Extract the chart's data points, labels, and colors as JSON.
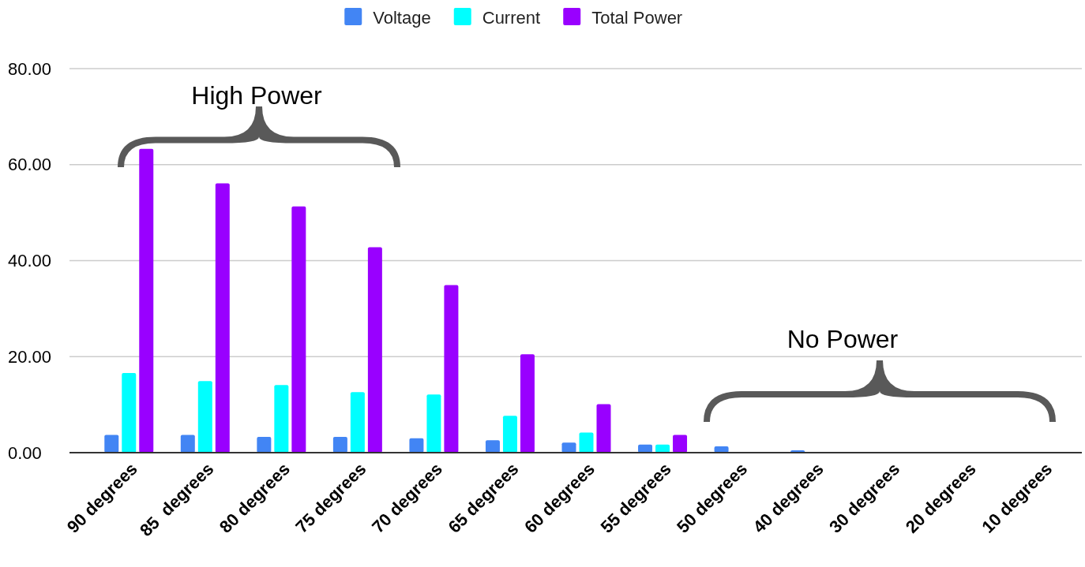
{
  "chart_data": {
    "type": "bar",
    "categories": [
      "90 degrees",
      "85  degrees",
      "80 degrees",
      "75 degrees",
      "70 degrees",
      "65 degrees",
      "60 degrees",
      "55 degrees",
      "50 degrees",
      "40 degrees",
      "30 degrees",
      "20 degrees",
      "10 degrees"
    ],
    "series": [
      {
        "name": "Voltage",
        "color": "#4285f4",
        "values": [
          3.7,
          3.7,
          3.3,
          3.3,
          3.0,
          2.6,
          2.1,
          1.7,
          1.3,
          0.5,
          0,
          0,
          0
        ]
      },
      {
        "name": "Current",
        "color": "#00ffff",
        "values": [
          16.6,
          14.9,
          14.1,
          12.6,
          12.1,
          7.7,
          4.2,
          1.7,
          0,
          0,
          0,
          0,
          0
        ]
      },
      {
        "name": "Total Power",
        "color": "#9900ff",
        "values": [
          63.3,
          56.1,
          51.3,
          42.8,
          34.9,
          20.5,
          10.1,
          3.7,
          0,
          0,
          0,
          0,
          0
        ]
      }
    ],
    "ylim": [
      0,
      80
    ],
    "yticks": [
      {
        "value": 0,
        "label": "0.00"
      },
      {
        "value": 20,
        "label": "20.00"
      },
      {
        "value": 40,
        "label": "40.00"
      },
      {
        "value": 60,
        "label": "60.00"
      },
      {
        "value": 80,
        "label": "80.00"
      }
    ],
    "grid": "y",
    "legend": "top",
    "annotations": [
      "High Power",
      "No Power"
    ]
  }
}
